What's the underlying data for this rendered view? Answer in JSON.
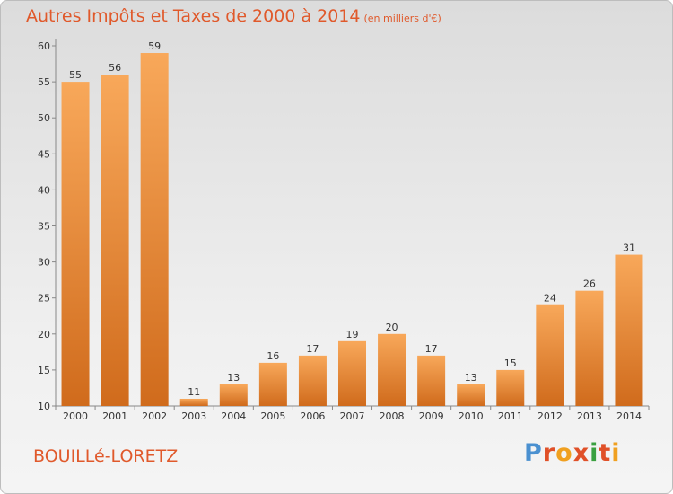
{
  "header": {
    "title": "Autres Impôts et Taxes de 2000 à 2014",
    "unit": "(en milliers d'€)"
  },
  "footer": {
    "commune": "BOUILLé-LORETZ",
    "logo": "Proxiti"
  },
  "colors": {
    "bar": "#f0933f",
    "bar_light": "#f8a85a",
    "bar_dark": "#d06b1c",
    "title": "#e0592b",
    "logo": [
      "#4a90d0",
      "#e05028",
      "#f0a020",
      "#e05028",
      "#3aa040",
      "#e05028",
      "#f0a020"
    ]
  },
  "chart_data": {
    "type": "bar",
    "title": "Autres Impôts et Taxes de 2000 à 2014",
    "categories": [
      "2000",
      "2001",
      "2002",
      "2003",
      "2004",
      "2005",
      "2006",
      "2007",
      "2008",
      "2009",
      "2010",
      "2011",
      "2012",
      "2013",
      "2014"
    ],
    "values": [
      55,
      56,
      59,
      11,
      13,
      16,
      17,
      19,
      20,
      17,
      13,
      15,
      24,
      26,
      31
    ],
    "ylim": [
      10,
      60
    ],
    "yticks": [
      10,
      15,
      20,
      25,
      30,
      35,
      40,
      45,
      50,
      55,
      60
    ],
    "grid": false,
    "legend": "none"
  }
}
